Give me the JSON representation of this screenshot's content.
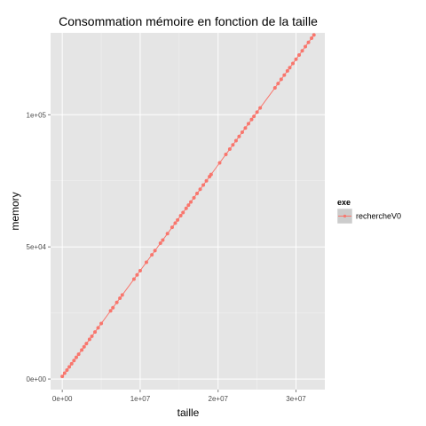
{
  "chart_data": {
    "type": "line",
    "title": "Consommation mémoire en fonction de la taille",
    "xlabel": "taille",
    "ylabel": "memory",
    "xlim": [
      -1500000,
      33700000
    ],
    "ylim": [
      -4000,
      131000
    ],
    "xticks": [
      0,
      10000000,
      20000000,
      30000000
    ],
    "xtick_labels": [
      "0e+00",
      "1e+07",
      "2e+07",
      "3e+07"
    ],
    "yticks": [
      0,
      50000,
      100000
    ],
    "ytick_labels": [
      "0e+00",
      "5e+04",
      "1e+05"
    ],
    "grid": true,
    "legend": {
      "title": "exe",
      "position": "right"
    },
    "series": [
      {
        "name": "rechercheV0",
        "color": "#f8766d",
        "x": [
          0,
          300000,
          600000,
          900000,
          1200000,
          1500000,
          1800000,
          2100000,
          2500000,
          2800000,
          3100000,
          3500000,
          3800000,
          4200000,
          4600000,
          5000000,
          6200000,
          6500000,
          7000000,
          7400000,
          7700000,
          9200000,
          9600000,
          10000000,
          10800000,
          11500000,
          11900000,
          12600000,
          12900000,
          13500000,
          14100000,
          14500000,
          14800000,
          15200000,
          15500000,
          15900000,
          16200000,
          16500000,
          16900000,
          17300000,
          17700000,
          18100000,
          18500000,
          18900000,
          19100000,
          20200000,
          21000000,
          21500000,
          21900000,
          22300000,
          22700000,
          23100000,
          23500000,
          23900000,
          24300000,
          24600000,
          25000000,
          25400000,
          27300000,
          27700000,
          28100000,
          28500000,
          28900000,
          29200000,
          29600000,
          30000000,
          30400000,
          30800000,
          31200000,
          31600000,
          32000000,
          32300000
        ],
        "y": [
          1000,
          2200,
          3400,
          4600,
          5800,
          7000,
          8200,
          9400,
          11000,
          12200,
          13400,
          15000,
          16200,
          17800,
          19400,
          21000,
          25800,
          27000,
          29000,
          30600,
          31800,
          37800,
          39400,
          41000,
          44200,
          47000,
          48600,
          51400,
          52600,
          55000,
          57400,
          59000,
          60200,
          61800,
          63000,
          64600,
          65800,
          67000,
          68600,
          70200,
          71800,
          73400,
          75000,
          76600,
          77400,
          81800,
          85000,
          87000,
          88600,
          90200,
          91800,
          93400,
          95000,
          96600,
          98200,
          99400,
          101000,
          102600,
          110200,
          111800,
          113400,
          115000,
          116600,
          117800,
          119400,
          121000,
          122600,
          124200,
          125800,
          127400,
          129000,
          130200
        ]
      }
    ]
  }
}
